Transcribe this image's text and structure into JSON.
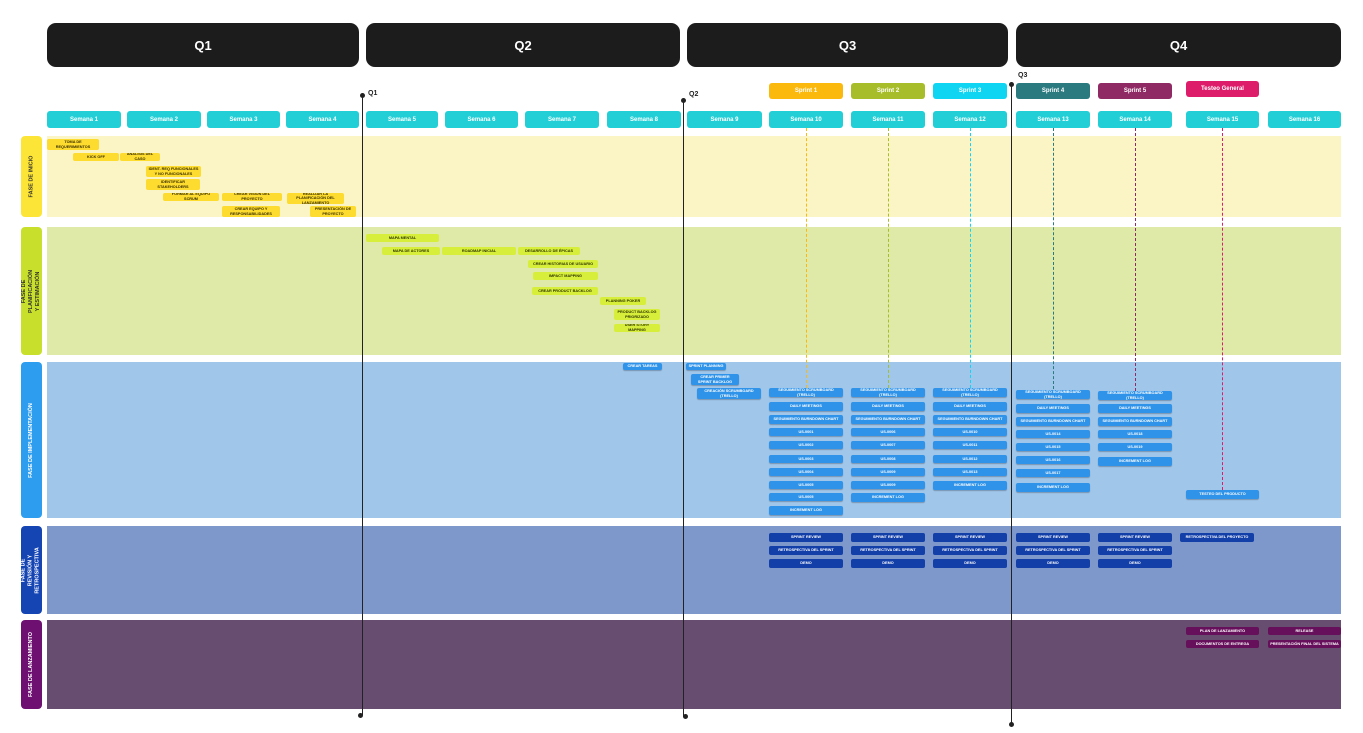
{
  "quarters": [
    "Q1",
    "Q2",
    "Q3",
    "Q4"
  ],
  "markers": [
    "Q1",
    "Q2",
    "Q3"
  ],
  "sprints": [
    {
      "label": "Sprint 1",
      "color": "#fbb90d"
    },
    {
      "label": "Sprint 2",
      "color": "#a8bd2a"
    },
    {
      "label": "Sprint 3",
      "color": "#0fd5f2"
    },
    {
      "label": "Sprint 4",
      "color": "#2b7a80"
    },
    {
      "label": "Sprint 5",
      "color": "#8f2a64"
    },
    {
      "label": "Testeo General",
      "color": "#dd1d6a"
    }
  ],
  "weeks": [
    "Semana 1",
    "Semana 2",
    "Semana 3",
    "Semana 4",
    "Semana 5",
    "Semana 6",
    "Semana 7",
    "Semana 8",
    "Semana 9",
    "Semana 10",
    "Semana 11",
    "Semana 12",
    "Semana 13",
    "Semana 14",
    "Semana 15",
    "Semana 16"
  ],
  "phases": [
    {
      "label": "FASE DE INICIO",
      "color": "#fce536",
      "band": "#fbf5c5"
    },
    {
      "label": "FASE DE PLANIFICACIÓN Y ESTIMACIÓN",
      "color": "#c8e02c",
      "band": "#e0eaa8"
    },
    {
      "label": "FASE DE IMPLEMENTACIÓN",
      "color": "#2d9df0",
      "band": "#a0c6ea"
    },
    {
      "label": "FASE DE REVISIÓN Y RETROSPECTIVA",
      "color": "#1544b3",
      "band": "#7f98cb"
    },
    {
      "label": "FASE DE LANZAMIENTO",
      "color": "#6d1071",
      "band": "#674d6f"
    }
  ],
  "inicio": [
    "TOMA DE REQUERIMIENTOS",
    "KICK OFF",
    "ANÁLISIS DEL CASO",
    "IDENT. REQ FUNCIONALES Y NO FUNCIONALES",
    "IDENTIFICAR STAKEHOLDERS",
    "FORMAR AL EQUIPO SCRUM",
    "CREAR VISIÓN DEL PROYECTO",
    "REALIZAR LA PLANIFICACIÓN DEL LANZAMIENTO",
    "CREAR EQUIPO Y RESPONSABILIDADES",
    "PRESENTACIÓN DE PROYECTO"
  ],
  "planificacion": [
    "MAPA MENTAL",
    "MAPA DE ACTORES",
    "ROADMAP INICIAL",
    "DESARROLLO DE ÉPICAS",
    "CREAR HISTORIAS DE USUARIO",
    "IMPACT MAPPING",
    "CREAR PRODUCT BACKLOG",
    "PLANNING POKER",
    "PRODUCT BACKLOG PRIORIZADO",
    "USER STORY MAPPING"
  ],
  "impl_intro": [
    "CREAR TAREAS",
    "SPRINT PLANNING",
    "CREAR PRIMER SPRINT BACKLOG",
    "CREACIÓN SCRUMBOARD (TRELLO)"
  ],
  "impl_common": {
    "seg": "SEGUIMIENTO SCRUMBOARD (TRELLO)",
    "daily": "DAILY MEETINGS",
    "burn": "SEGUIMIENTO BURNDOWN CHART",
    "incr": "INCREMENT LOG"
  },
  "impl_tasks": {
    "s1": [
      "US-0001",
      "US-0002",
      "US-0003",
      "US-0004",
      "US-0005"
    ],
    "s2": [
      "US-0006",
      "US-0007",
      "US-0008",
      "US-0009"
    ],
    "s3": [
      "US-0010",
      "US-0011",
      "US-0012",
      "US-0013"
    ],
    "s4": [
      "US-0014",
      "US-0015",
      "US-0016",
      "US-0017"
    ],
    "s5": [
      "US-0018",
      "US-0019"
    ]
  },
  "test_label": "TESTEO DEL PRODUCTO",
  "review": [
    "SPRINT REVIEW",
    "RETROSPECTIVA DEL SPRINT",
    "DEMO"
  ],
  "review_final": "RETROSPECTIVA DEL PROYECTO",
  "launch": [
    "PLAN DE LANZAMIENTO",
    "RELEASE",
    "DOCUMENTOS DE ENTREGA",
    "PRESENTACIÓN FINAL DEL SISTEMA"
  ]
}
